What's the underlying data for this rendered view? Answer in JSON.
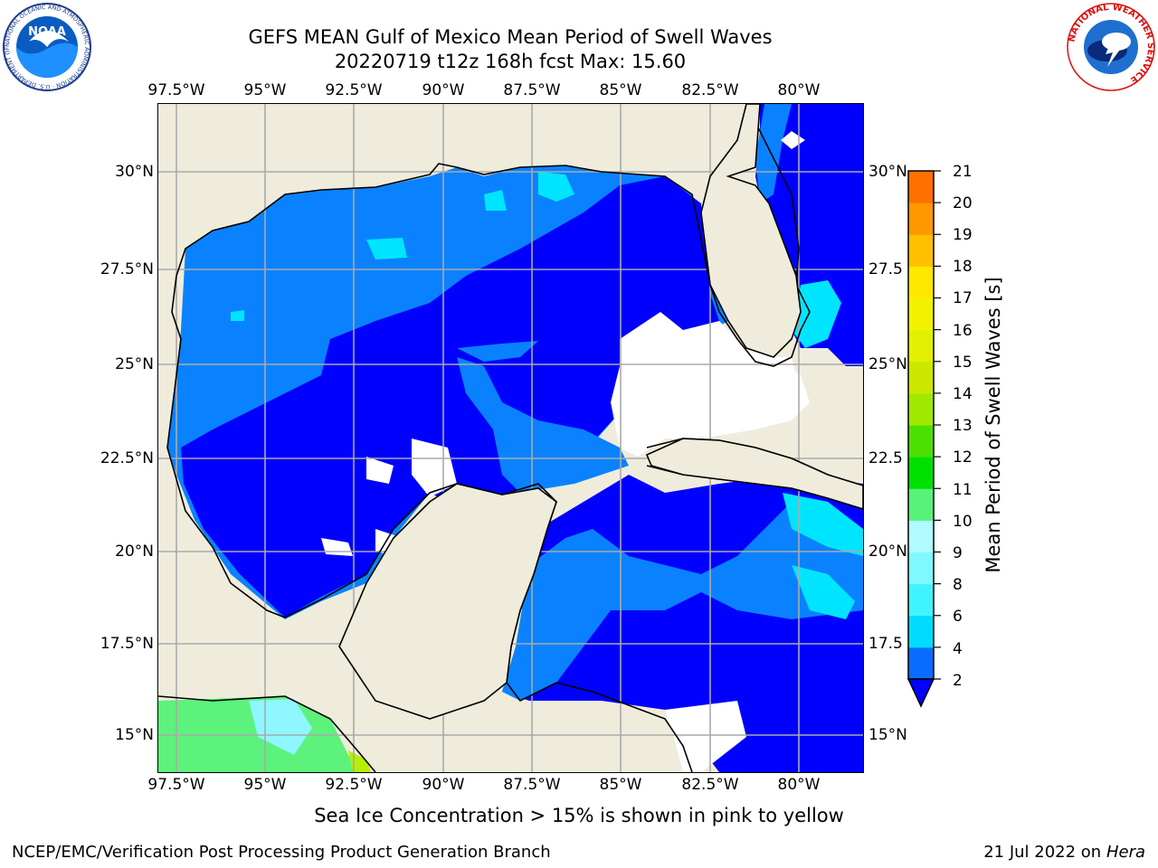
{
  "header": {
    "title_line1": "GEFS MEAN Gulf of Mexico Mean Period of Swell Waves",
    "title_line2": "20220719 t12z 168h fcst   Max: 15.60"
  },
  "logos": {
    "left_name": "NOAA",
    "left_ring_text": "NATIONAL OCEANIC AND ATMOSPHERIC ADMINISTRATION · U.S. DEPARTMENT OF COMMERCE",
    "right_ring_text": "NATIONAL WEATHER SERVICE"
  },
  "map": {
    "lon_labels": [
      "97.5°W",
      "95°W",
      "92.5°W",
      "90°W",
      "87.5°W",
      "85°W",
      "82.5°W",
      "80°W"
    ],
    "lat_labels_left": [
      "30°N",
      "27.5°N",
      "25°N",
      "22.5°N",
      "20°N",
      "17.5°N",
      "15°N"
    ],
    "lat_labels_right": [
      "30°N",
      "27.5",
      "25°N",
      "22.5",
      "20°N",
      "17.5",
      "15°N"
    ],
    "colors": {
      "land": "#efecdc",
      "deep_blue": "#0000ff",
      "mid_blue": "#0a82ff",
      "cyan": "#00e5ff",
      "light_cyan": "#8ef7ff",
      "green": "#5cf27c",
      "lime": "#b4f000",
      "grid": "#aaaaaa",
      "coast": "#000000"
    }
  },
  "colorbar": {
    "label": "Mean Period of Swell Waves [s]",
    "ticks": [
      "2",
      "4",
      "6",
      "8",
      "9",
      "10",
      "11",
      "12",
      "13",
      "14",
      "15",
      "16",
      "17",
      "18",
      "19",
      "20",
      "21"
    ],
    "colors": [
      "#0a6cff",
      "#00dcff",
      "#3ff4ff",
      "#7ff9ff",
      "#b0fbff",
      "#57f27a",
      "#00e000",
      "#4ce000",
      "#a0e800",
      "#cce800",
      "#e2f000",
      "#f2f200",
      "#ffe800",
      "#ffc000",
      "#ff9800",
      "#ff7000",
      "#ff4400",
      "#ff1a00"
    ]
  },
  "footer": {
    "note": "Sea Ice Concentration > 15% is shown in pink to yellow",
    "credit": "NCEP/EMC/Verification Post Processing Product Generation Branch",
    "date_prefix": "21 Jul 2022 on ",
    "date_host": "Hera"
  }
}
